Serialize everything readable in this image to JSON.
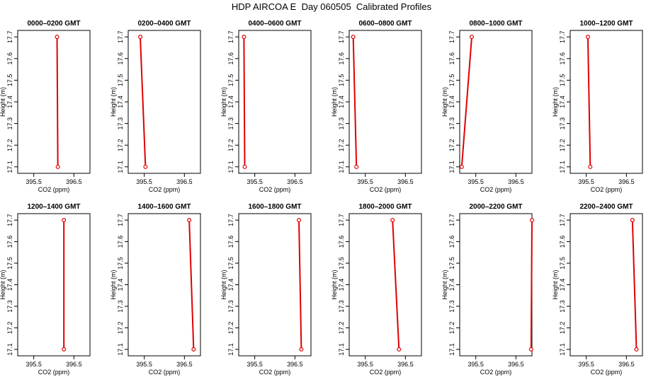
{
  "title": "HDP AIRCOA E  Day 060505  Calibrated Profiles",
  "chart_data": [
    {
      "type": "line",
      "title": "0000–0200 GMT",
      "xlabel": "CO2 (ppm)",
      "ylabel": "Height (m)",
      "xlim": [
        395.1,
        396.9
      ],
      "ylim": [
        17.07,
        17.73
      ],
      "xticks": [
        395.5,
        396.5
      ],
      "yticks": [
        17.1,
        17.2,
        17.3,
        17.4,
        17.5,
        17.6,
        17.7
      ],
      "grid": false,
      "points": [
        {
          "x": 396.1,
          "y": 17.1
        },
        {
          "x": 396.08,
          "y": 17.7
        }
      ]
    },
    {
      "type": "line",
      "title": "0200–0400 GMT",
      "xlabel": "CO2 (ppm)",
      "ylabel": "Height (m)",
      "xlim": [
        395.1,
        396.9
      ],
      "ylim": [
        17.07,
        17.73
      ],
      "xticks": [
        395.5,
        396.5
      ],
      "yticks": [
        17.1,
        17.2,
        17.3,
        17.4,
        17.5,
        17.6,
        17.7
      ],
      "grid": false,
      "points": [
        {
          "x": 395.53,
          "y": 17.1
        },
        {
          "x": 395.4,
          "y": 17.7
        }
      ]
    },
    {
      "type": "line",
      "title": "0400–0600 GMT",
      "xlabel": "CO2 (ppm)",
      "ylabel": "Height (m)",
      "xlim": [
        395.1,
        396.9
      ],
      "ylim": [
        17.07,
        17.73
      ],
      "xticks": [
        395.5,
        396.5
      ],
      "yticks": [
        17.1,
        17.2,
        17.3,
        17.4,
        17.5,
        17.6,
        17.7
      ],
      "grid": false,
      "points": [
        {
          "x": 395.25,
          "y": 17.1
        },
        {
          "x": 395.23,
          "y": 17.7
        }
      ]
    },
    {
      "type": "line",
      "title": "0600–0800 GMT",
      "xlabel": "CO2 (ppm)",
      "ylabel": "Height (m)",
      "xlim": [
        395.1,
        396.9
      ],
      "ylim": [
        17.07,
        17.73
      ],
      "xticks": [
        395.5,
        396.5
      ],
      "yticks": [
        17.1,
        17.2,
        17.3,
        17.4,
        17.5,
        17.6,
        17.7
      ],
      "grid": false,
      "points": [
        {
          "x": 395.28,
          "y": 17.1
        },
        {
          "x": 395.2,
          "y": 17.7
        }
      ]
    },
    {
      "type": "line",
      "title": "0800–1000 GMT",
      "xlabel": "CO2 (ppm)",
      "ylabel": "Height (m)",
      "xlim": [
        395.1,
        396.9
      ],
      "ylim": [
        17.07,
        17.73
      ],
      "xticks": [
        395.5,
        396.5
      ],
      "yticks": [
        17.1,
        17.2,
        17.3,
        17.4,
        17.5,
        17.6,
        17.7
      ],
      "grid": false,
      "points": [
        {
          "x": 395.15,
          "y": 17.1
        },
        {
          "x": 395.4,
          "y": 17.7
        }
      ]
    },
    {
      "type": "line",
      "title": "1000–1200 GMT",
      "xlabel": "CO2 (ppm)",
      "ylabel": "Height (m)",
      "xlim": [
        395.1,
        396.9
      ],
      "ylim": [
        17.07,
        17.73
      ],
      "xticks": [
        395.5,
        396.5
      ],
      "yticks": [
        17.1,
        17.2,
        17.3,
        17.4,
        17.5,
        17.6,
        17.7
      ],
      "grid": false,
      "points": [
        {
          "x": 395.6,
          "y": 17.1
        },
        {
          "x": 395.54,
          "y": 17.7
        }
      ]
    },
    {
      "type": "line",
      "title": "1200–1400 GMT",
      "xlabel": "CO2 (ppm)",
      "ylabel": "Height (m)",
      "xlim": [
        395.1,
        396.9
      ],
      "ylim": [
        17.07,
        17.73
      ],
      "xticks": [
        395.5,
        396.5
      ],
      "yticks": [
        17.1,
        17.2,
        17.3,
        17.4,
        17.5,
        17.6,
        17.7
      ],
      "grid": false,
      "points": [
        {
          "x": 396.25,
          "y": 17.1
        },
        {
          "x": 396.25,
          "y": 17.7
        }
      ]
    },
    {
      "type": "line",
      "title": "1400–1600 GMT",
      "xlabel": "CO2 (ppm)",
      "ylabel": "Height (m)",
      "xlim": [
        395.1,
        396.9
      ],
      "ylim": [
        17.07,
        17.73
      ],
      "xticks": [
        395.5,
        396.5
      ],
      "yticks": [
        17.1,
        17.2,
        17.3,
        17.4,
        17.5,
        17.6,
        17.7
      ],
      "grid": false,
      "points": [
        {
          "x": 396.73,
          "y": 17.1
        },
        {
          "x": 396.62,
          "y": 17.7
        }
      ]
    },
    {
      "type": "line",
      "title": "1600–1800 GMT",
      "xlabel": "CO2 (ppm)",
      "ylabel": "Height (m)",
      "xlim": [
        395.1,
        396.9
      ],
      "ylim": [
        17.07,
        17.73
      ],
      "xticks": [
        395.5,
        396.5
      ],
      "yticks": [
        17.1,
        17.2,
        17.3,
        17.4,
        17.5,
        17.6,
        17.7
      ],
      "grid": false,
      "points": [
        {
          "x": 396.66,
          "y": 17.1
        },
        {
          "x": 396.6,
          "y": 17.7
        }
      ]
    },
    {
      "type": "line",
      "title": "1800–2000 GMT",
      "xlabel": "CO2 (ppm)",
      "ylabel": "Height (m)",
      "xlim": [
        395.1,
        396.9
      ],
      "ylim": [
        17.07,
        17.73
      ],
      "xticks": [
        395.5,
        396.5
      ],
      "yticks": [
        17.1,
        17.2,
        17.3,
        17.4,
        17.5,
        17.6,
        17.7
      ],
      "grid": false,
      "points": [
        {
          "x": 396.34,
          "y": 17.1
        },
        {
          "x": 396.18,
          "y": 17.7
        }
      ]
    },
    {
      "type": "line",
      "title": "2000–2200 GMT",
      "xlabel": "CO2 (ppm)",
      "ylabel": "Height (m)",
      "xlim": [
        395.1,
        396.9
      ],
      "ylim": [
        17.07,
        17.73
      ],
      "xticks": [
        395.5,
        396.5
      ],
      "yticks": [
        17.1,
        17.2,
        17.3,
        17.4,
        17.5,
        17.6,
        17.7
      ],
      "grid": false,
      "points": [
        {
          "x": 396.88,
          "y": 17.1
        },
        {
          "x": 396.9,
          "y": 17.7
        }
      ]
    },
    {
      "type": "line",
      "title": "2200–2400 GMT",
      "xlabel": "CO2 (ppm)",
      "ylabel": "Height (m)",
      "xlim": [
        395.1,
        396.9
      ],
      "ylim": [
        17.07,
        17.73
      ],
      "xticks": [
        395.5,
        396.5
      ],
      "yticks": [
        17.1,
        17.2,
        17.3,
        17.4,
        17.5,
        17.6,
        17.7
      ],
      "grid": false,
      "points": [
        {
          "x": 396.75,
          "y": 17.1
        },
        {
          "x": 396.65,
          "y": 17.7
        }
      ]
    }
  ]
}
